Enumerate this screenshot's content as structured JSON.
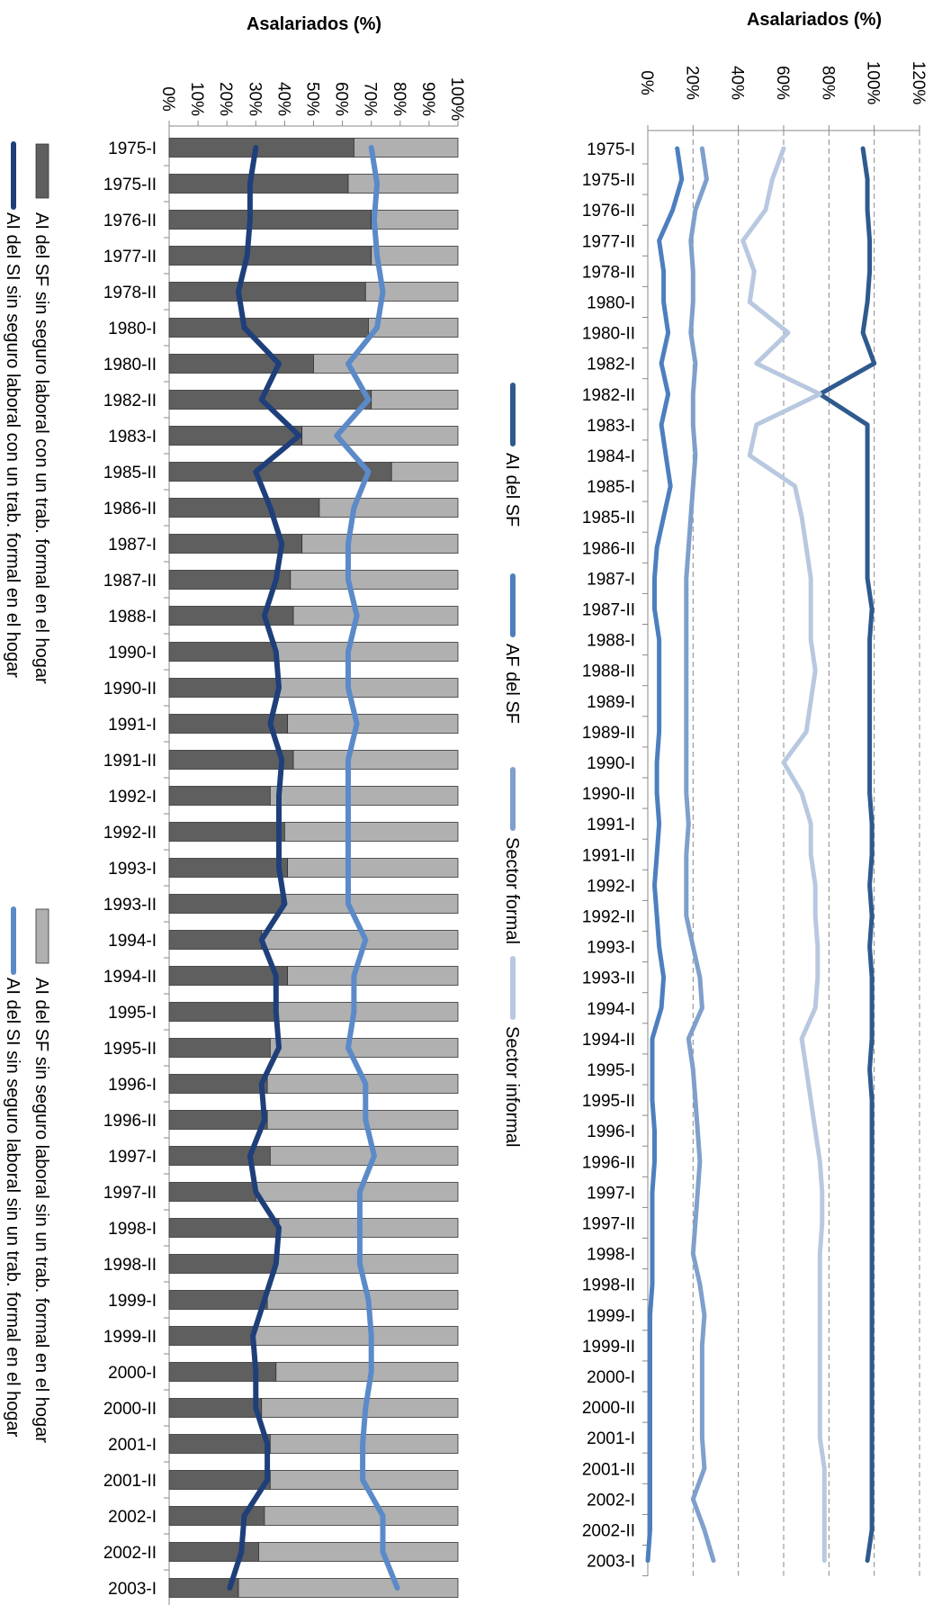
{
  "chart_data": [
    {
      "type": "bar",
      "stacked": true,
      "orientation": "horizontal-rotated",
      "title": "Asalariados (%)",
      "value_ticks": [
        "0%",
        "10%",
        "20%",
        "30%",
        "40%",
        "50%",
        "60%",
        "70%",
        "80%",
        "90%",
        "100%"
      ],
      "ylim": [
        0,
        100
      ],
      "categories": [
        "1975-I",
        "1975-II",
        "1976-II",
        "1977-II",
        "1978-II",
        "1980-I",
        "1980-II",
        "1982-II",
        "1983-I",
        "1985-II",
        "1986-II",
        "1987-I",
        "1987-II",
        "1988-I",
        "1990-I",
        "1990-II",
        "1991-I",
        "1991-II",
        "1992-I",
        "1992-II",
        "1993-I",
        "1993-II",
        "1994-I",
        "1994-II",
        "1995-I",
        "1995-II",
        "1996-I",
        "1996-II",
        "1997-I",
        "1997-II",
        "1998-I",
        "1998-II",
        "1999-I",
        "1999-II",
        "2000-I",
        "2000-II",
        "2001-I",
        "2001-II",
        "2002-I",
        "2002-II",
        "2003-I"
      ],
      "series": [
        {
          "name": "AI del SF sin seguro laboral con un trab. formal en el hogar",
          "kind": "bar",
          "color": "#5f5f5f",
          "values": [
            64,
            62,
            70,
            70,
            68,
            69,
            50,
            70,
            46,
            77,
            52,
            46,
            42,
            43,
            37,
            38,
            41,
            43,
            35,
            40,
            41,
            39,
            32,
            41,
            37,
            35,
            34,
            34,
            35,
            30,
            38,
            37,
            34,
            29,
            37,
            32,
            35,
            35,
            33,
            31,
            24
          ]
        },
        {
          "name": "AI del SF sin seguro laboral sin un trab. formal en el hogar",
          "kind": "bar",
          "color": "#b0b0b0",
          "values": [
            36,
            38,
            30,
            30,
            32,
            31,
            50,
            30,
            54,
            23,
            48,
            54,
            58,
            57,
            63,
            62,
            59,
            57,
            65,
            60,
            59,
            61,
            68,
            59,
            63,
            65,
            66,
            66,
            65,
            70,
            62,
            63,
            66,
            71,
            63,
            68,
            65,
            65,
            67,
            69,
            76
          ]
        },
        {
          "name": "AI del SI sin seguro laboral con un trab. formal en el hogar",
          "kind": "line",
          "color": "#1f3f7a",
          "values": [
            30,
            28,
            28,
            27,
            24,
            26,
            38,
            32,
            45,
            30,
            35,
            39,
            37,
            33,
            37,
            38,
            35,
            39,
            38,
            38,
            38,
            40,
            32,
            37,
            37,
            38,
            32,
            33,
            28,
            30,
            38,
            37,
            33,
            29,
            30,
            30,
            34,
            34,
            26,
            25,
            21
          ]
        },
        {
          "name": "AI del SI sin seguro laboral sin un trab. formal en el hogar",
          "kind": "line",
          "color": "#5b8ac9",
          "values": [
            70,
            72,
            71,
            72,
            74,
            72,
            62,
            69,
            58,
            69,
            64,
            62,
            62,
            65,
            62,
            62,
            65,
            62,
            62,
            62,
            62,
            62,
            68,
            64,
            64,
            62,
            68,
            68,
            71,
            66,
            66,
            66,
            69,
            70,
            70,
            68,
            67,
            67,
            74,
            74,
            79
          ]
        }
      ]
    },
    {
      "type": "line",
      "orientation": "horizontal-rotated",
      "title": "Asalariados (%)",
      "value_ticks": [
        "0%",
        "20%",
        "40%",
        "60%",
        "80%",
        "100%",
        "120%"
      ],
      "ylim": [
        0,
        120
      ],
      "grid": true,
      "categories": [
        "1975-I",
        "1975-II",
        "1976-II",
        "1977-II",
        "1978-II",
        "1980-I",
        "1980-II",
        "1982-I",
        "1982-II",
        "1983-I",
        "1984-I",
        "1985-I",
        "1985-II",
        "1986-II",
        "1987-I",
        "1987-II",
        "1988-I",
        "1988-II",
        "1989-I",
        "1989-II",
        "1990-I",
        "1990-II",
        "1991-I",
        "1991-II",
        "1992-I",
        "1992-II",
        "1993-I",
        "1993-II",
        "1994-I",
        "1994-II",
        "1995-I",
        "1995-II",
        "1996-I",
        "1996-II",
        "1997-I",
        "1997-II",
        "1998-I",
        "1998-II",
        "1999-I",
        "1999-II",
        "2000-I",
        "2000-II",
        "2001-I",
        "2001-II",
        "2002-I",
        "2002-II",
        "2003-I"
      ],
      "series": [
        {
          "name": "AI del SF",
          "color": "#2e5a8e",
          "values": [
            95,
            97,
            97,
            98,
            98,
            97,
            95,
            100,
            76,
            97,
            97,
            97,
            97,
            97,
            97,
            99,
            98,
            98,
            98,
            98,
            98,
            98,
            99,
            99,
            98,
            99,
            98,
            99,
            99,
            99,
            98,
            99,
            99,
            99,
            99,
            99,
            99,
            99,
            99,
            99,
            99,
            99,
            99,
            99,
            99,
            99,
            97
          ]
        },
        {
          "name": "AF del SF",
          "color": "#4d7fbf",
          "values": [
            13,
            15,
            11,
            5,
            7,
            7,
            9,
            6,
            9,
            6,
            8,
            10,
            7,
            4,
            3,
            3,
            5,
            5,
            5,
            5,
            4,
            4,
            5,
            4,
            3,
            4,
            5,
            7,
            6,
            2,
            2,
            2,
            3,
            3,
            2,
            2,
            2,
            2,
            1,
            1,
            1,
            1,
            1,
            1,
            1,
            1,
            0
          ]
        },
        {
          "name": "Sector formal",
          "color": "#7f9fcc",
          "values": [
            24,
            26,
            21,
            19,
            20,
            20,
            19,
            21,
            20,
            20,
            21,
            20,
            19,
            18,
            17,
            17,
            17,
            17,
            17,
            17,
            17,
            17,
            18,
            17,
            17,
            17,
            20,
            23,
            24,
            18,
            20,
            21,
            22,
            23,
            22,
            21,
            20,
            23,
            25,
            24,
            24,
            24,
            24,
            25,
            20,
            25,
            29
          ]
        },
        {
          "name": "Sector informal",
          "color": "#b8c8e0",
          "values": [
            60,
            55,
            52,
            42,
            47,
            45,
            62,
            48,
            76,
            48,
            45,
            65,
            68,
            70,
            72,
            72,
            72,
            74,
            72,
            70,
            60,
            68,
            72,
            72,
            74,
            74,
            75,
            75,
            74,
            68,
            70,
            72,
            74,
            76,
            77,
            77,
            76,
            76,
            76,
            76,
            76,
            76,
            76,
            78,
            78,
            78,
            78
          ]
        }
      ]
    }
  ]
}
